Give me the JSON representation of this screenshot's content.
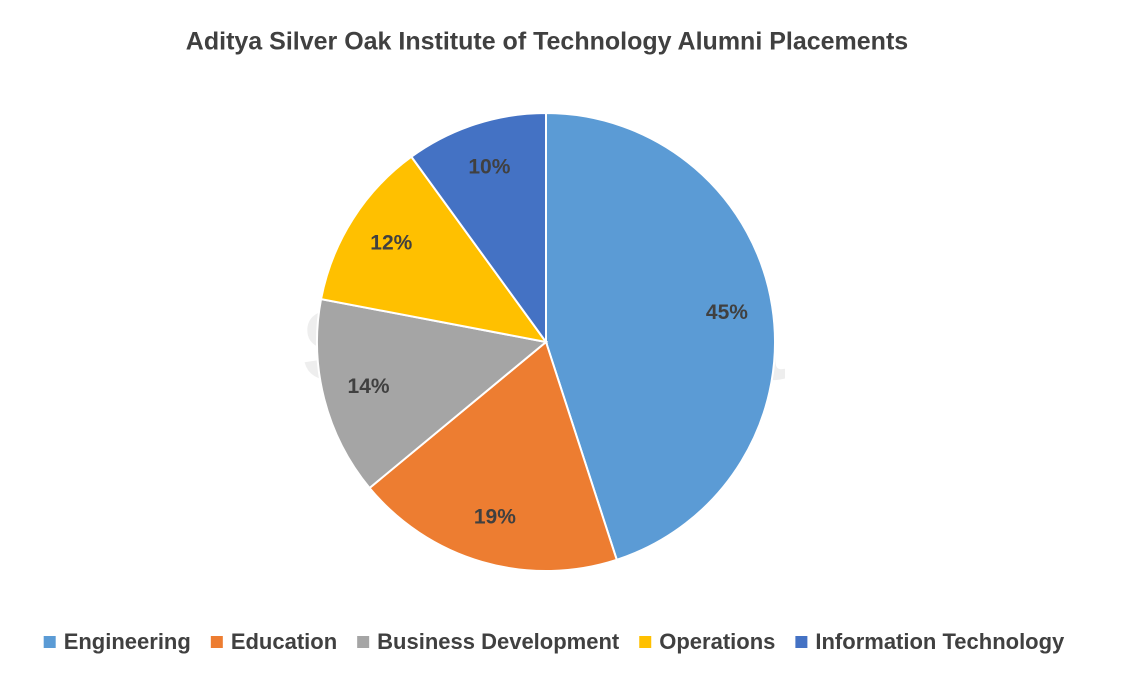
{
  "chart_data": {
    "type": "pie",
    "title": "Aditya Silver Oak Institute of Technology Alumni Placements",
    "watermark": "shiksha",
    "categories": [
      "Engineering",
      "Education",
      "Business Development",
      "Operations",
      "Information Technology"
    ],
    "values": [
      45,
      19,
      14,
      12,
      10
    ],
    "value_labels": [
      "45%",
      "19%",
      "14%",
      "12%",
      "10%"
    ],
    "colors": [
      "#5b9bd5",
      "#ed7d31",
      "#a5a5a5",
      "#ffc000",
      "#4472c4"
    ],
    "legend": "bottom"
  }
}
